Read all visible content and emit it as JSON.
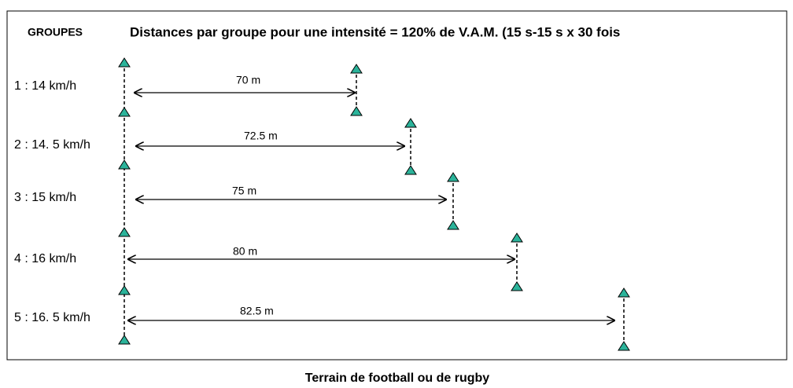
{
  "header": {
    "column": "GROUPES",
    "title": "Distances par groupe pour une intensité = 120% de V.A.M. (15 s-15 s x 30 fois"
  },
  "groups": [
    {
      "label": "1 : 14 km/h",
      "distance": "70 m"
    },
    {
      "label": "2 : 14. 5 km/h",
      "distance": "72.5 m"
    },
    {
      "label": "3 : 15 km/h",
      "distance": "75 m"
    },
    {
      "label": "4 : 16 km/h",
      "distance": "80 m"
    },
    {
      "label": "5 : 16. 5 km/h",
      "distance": "82.5 m"
    }
  ],
  "footer": "Terrain de football ou de rugby"
}
